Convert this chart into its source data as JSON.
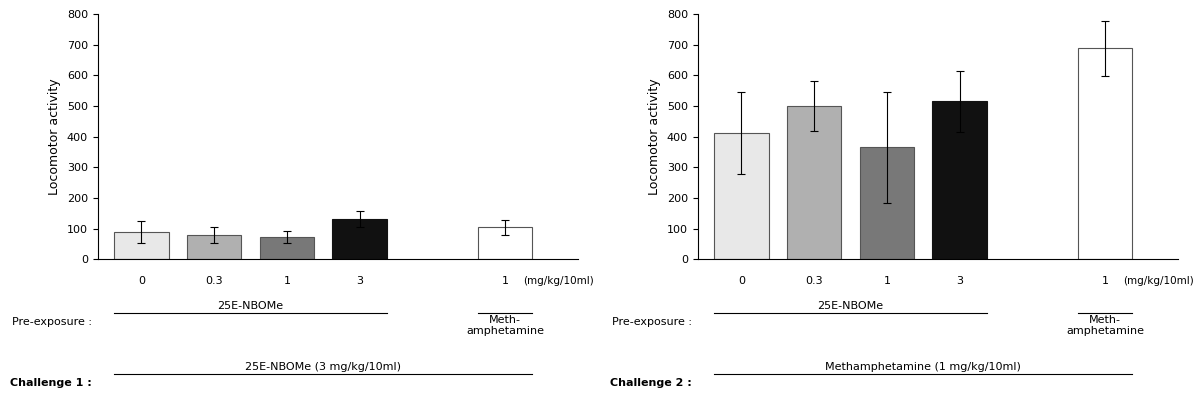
{
  "left": {
    "values": [
      90,
      80,
      72,
      132,
      105
    ],
    "errors": [
      35,
      25,
      20,
      25,
      25
    ],
    "colors": [
      "#e8e8e8",
      "#b0b0b0",
      "#787878",
      "#111111",
      "#ffffff"
    ],
    "edge_colors": [
      "#555555",
      "#555555",
      "#555555",
      "#111111",
      "#555555"
    ],
    "x_labels": [
      "0",
      "0.3",
      "1",
      "3",
      "1"
    ],
    "ylabel": "Locomotor activity",
    "ylim": [
      0,
      800
    ],
    "yticks": [
      0,
      100,
      200,
      300,
      400,
      500,
      600,
      700,
      800
    ],
    "challenge_label": "Challenge 1 :",
    "challenge_text": "25E-NBOMe (3 mg/kg/10ml)",
    "mg_label": "(mg/kg/10ml)"
  },
  "right": {
    "values": [
      412,
      500,
      365,
      515,
      688
    ],
    "errors": [
      135,
      80,
      180,
      100,
      90
    ],
    "colors": [
      "#e8e8e8",
      "#b0b0b0",
      "#787878",
      "#111111",
      "#ffffff"
    ],
    "edge_colors": [
      "#555555",
      "#555555",
      "#555555",
      "#111111",
      "#555555"
    ],
    "x_labels": [
      "0",
      "0.3",
      "1",
      "3",
      "1"
    ],
    "ylabel": "Locomotor activity",
    "ylim": [
      0,
      800
    ],
    "yticks": [
      0,
      100,
      200,
      300,
      400,
      500,
      600,
      700,
      800
    ],
    "challenge_label": "Challenge 2 :",
    "challenge_text": "Methamphetamine (1 mg/kg/10ml)",
    "mg_label": "(mg/kg/10ml)"
  },
  "shared": {
    "pre_exposure_label": "Pre-exposure :",
    "pre_exposure_nbome": "25E-NBOMe",
    "pre_exposure_meth": "Meth-\namphetamine"
  },
  "figsize": [
    12.0,
    4.09
  ],
  "dpi": 100
}
